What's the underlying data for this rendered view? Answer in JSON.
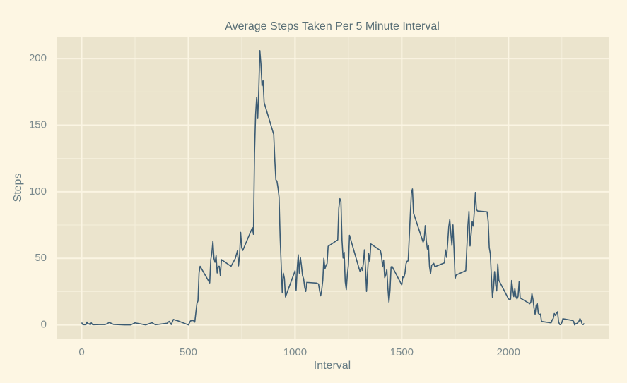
{
  "chart_data": {
    "type": "line",
    "title": "Average Steps Taken Per 5 Minute Interval",
    "x_label": "Interval",
    "y_label": "Steps",
    "xlim": [
      -117.75,
      2472.75
    ],
    "ylim": [
      -10.3,
      216.5
    ],
    "xticks": [
      0,
      500,
      1000,
      1500,
      2000
    ],
    "yticks": [
      0,
      50,
      100,
      150,
      200
    ],
    "x_minor_grid": [
      250,
      750,
      1250,
      1750,
      2250
    ],
    "y_minor_grid": [
      25,
      75,
      125,
      175
    ],
    "grid": true,
    "x": [
      0,
      5,
      10,
      15,
      20,
      25,
      30,
      35,
      40,
      45,
      50,
      55,
      100,
      110,
      130,
      150,
      200,
      230,
      250,
      300,
      330,
      345,
      400,
      410,
      420,
      430,
      440,
      450,
      500,
      510,
      520,
      525,
      530,
      540,
      545,
      550,
      555,
      600,
      605,
      610,
      615,
      620,
      625,
      630,
      635,
      640,
      645,
      650,
      655,
      700,
      720,
      730,
      735,
      740,
      745,
      750,
      755,
      800,
      805,
      810,
      815,
      820,
      825,
      830,
      835,
      840,
      845,
      850,
      855,
      900,
      905,
      910,
      915,
      920,
      925,
      930,
      935,
      940,
      945,
      950,
      955,
      1000,
      1005,
      1010,
      1015,
      1020,
      1025,
      1030,
      1035,
      1040,
      1045,
      1050,
      1055,
      1100,
      1110,
      1115,
      1120,
      1125,
      1130,
      1135,
      1140,
      1145,
      1150,
      1155,
      1200,
      1205,
      1210,
      1215,
      1220,
      1225,
      1230,
      1235,
      1240,
      1245,
      1250,
      1255,
      1300,
      1305,
      1310,
      1315,
      1320,
      1325,
      1330,
      1335,
      1340,
      1345,
      1350,
      1355,
      1400,
      1405,
      1410,
      1415,
      1420,
      1425,
      1430,
      1435,
      1440,
      1445,
      1450,
      1455,
      1500,
      1505,
      1510,
      1515,
      1520,
      1525,
      1530,
      1535,
      1540,
      1545,
      1550,
      1555,
      1600,
      1605,
      1610,
      1615,
      1620,
      1625,
      1630,
      1635,
      1640,
      1645,
      1650,
      1655,
      1700,
      1705,
      1710,
      1715,
      1720,
      1725,
      1730,
      1735,
      1740,
      1745,
      1750,
      1755,
      1800,
      1805,
      1810,
      1815,
      1820,
      1825,
      1830,
      1835,
      1840,
      1845,
      1850,
      1855,
      1900,
      1905,
      1910,
      1915,
      1920,
      1925,
      1930,
      1935,
      1940,
      1945,
      1950,
      1955,
      2000,
      2005,
      2010,
      2015,
      2020,
      2025,
      2030,
      2035,
      2040,
      2045,
      2050,
      2055,
      2100,
      2105,
      2110,
      2115,
      2120,
      2125,
      2130,
      2135,
      2140,
      2145,
      2150,
      2155,
      2200,
      2205,
      2210,
      2215,
      2220,
      2225,
      2230,
      2235,
      2240,
      2245,
      2250,
      2255,
      2300,
      2305,
      2310,
      2315,
      2320,
      2325,
      2330,
      2335,
      2340,
      2345,
      2350,
      2355
    ],
    "series": [
      {
        "name": "Steps",
        "color": "#3b5b73",
        "values": [
          1.7,
          0.3,
          0.1,
          0.2,
          0.1,
          2.1,
          0.5,
          0.9,
          0,
          1.5,
          0.3,
          0.1,
          0.3,
          0.2,
          1.8,
          0.3,
          0,
          0,
          1.5,
          0,
          1.6,
          0.1,
          1.2,
          2.6,
          0.3,
          4.1,
          3.5,
          3.1,
          0,
          3.0,
          3.3,
          3,
          2.1,
          16,
          18,
          39,
          44,
          31.5,
          49,
          53.8,
          63,
          49.9,
          47,
          52,
          39,
          44,
          44,
          37,
          49,
          44,
          49.9,
          55.7,
          44.3,
          52.3,
          69.5,
          57.8,
          56,
          73,
          68,
          129,
          157.5,
          171,
          155,
          177,
          206,
          195.9,
          179.6,
          183.4,
          167,
          143,
          124,
          109,
          108,
          103,
          95.9,
          66,
          45,
          24,
          38.8,
          34.9,
          21,
          40.6,
          26,
          42,
          52.7,
          38.9,
          50.8,
          44.3,
          37,
          34.7,
          28.3,
          25.1,
          31.9,
          31.4,
          30.7,
          25.5,
          21.8,
          26.5,
          33.4,
          50,
          42,
          44.6,
          46,
          59,
          63.9,
          87.6,
          94.8,
          92.8,
          63.4,
          50.2,
          54.5,
          32.4,
          26.5,
          37.7,
          45,
          67.3,
          42.3,
          39.9,
          43.3,
          40.9,
          46.2,
          56.4,
          42.8,
          25.1,
          39.9,
          53.5,
          47.3,
          60.8,
          55.8,
          51.8,
          43.6,
          48.7,
          35.5,
          37.5,
          41.8,
          27.5,
          17.1,
          26.1,
          43.6,
          43.8,
          30,
          36.1,
          35.5,
          38.8,
          45.9,
          47.8,
          48.1,
          65.3,
          82.9,
          98.7,
          102.1,
          84,
          62.1,
          64.1,
          74.5,
          63.2,
          56.9,
          59.8,
          43.9,
          38.6,
          44.7,
          45.5,
          46.2,
          43.7,
          46.6,
          56.3,
          50.7,
          61.2,
          73.4,
          79.1,
          68.9,
          59.7,
          75.1,
          56.5,
          34.8,
          37.5,
          40.7,
          58,
          74.7,
          85.3,
          59.3,
          67.8,
          77.7,
          74.2,
          85.3,
          99.5,
          86.6,
          85.6,
          84.9,
          77.8,
          58,
          53.4,
          36.3,
          20.7,
          27.4,
          40,
          30.2,
          25.5,
          45.7,
          33.5,
          19.6,
          19,
          19.3,
          33.3,
          26.8,
          21.2,
          27.3,
          21.3,
          19.5,
          21.3,
          32.3,
          20.2,
          15.9,
          17.2,
          23.5,
          19.2,
          12.5,
          8,
          14.7,
          16.3,
          8.7,
          7.8,
          8.1,
          2.6,
          1.5,
          3.7,
          4.8,
          8.5,
          7.1,
          8.7,
          9.8,
          2.2,
          0.3,
          0.1,
          1.6,
          4.6,
          3.3,
          2.8,
          0,
          0.8,
          1,
          1.6,
          2.6,
          4.7,
          3.3,
          0.6,
          0.2,
          1.1
        ]
      }
    ]
  }
}
